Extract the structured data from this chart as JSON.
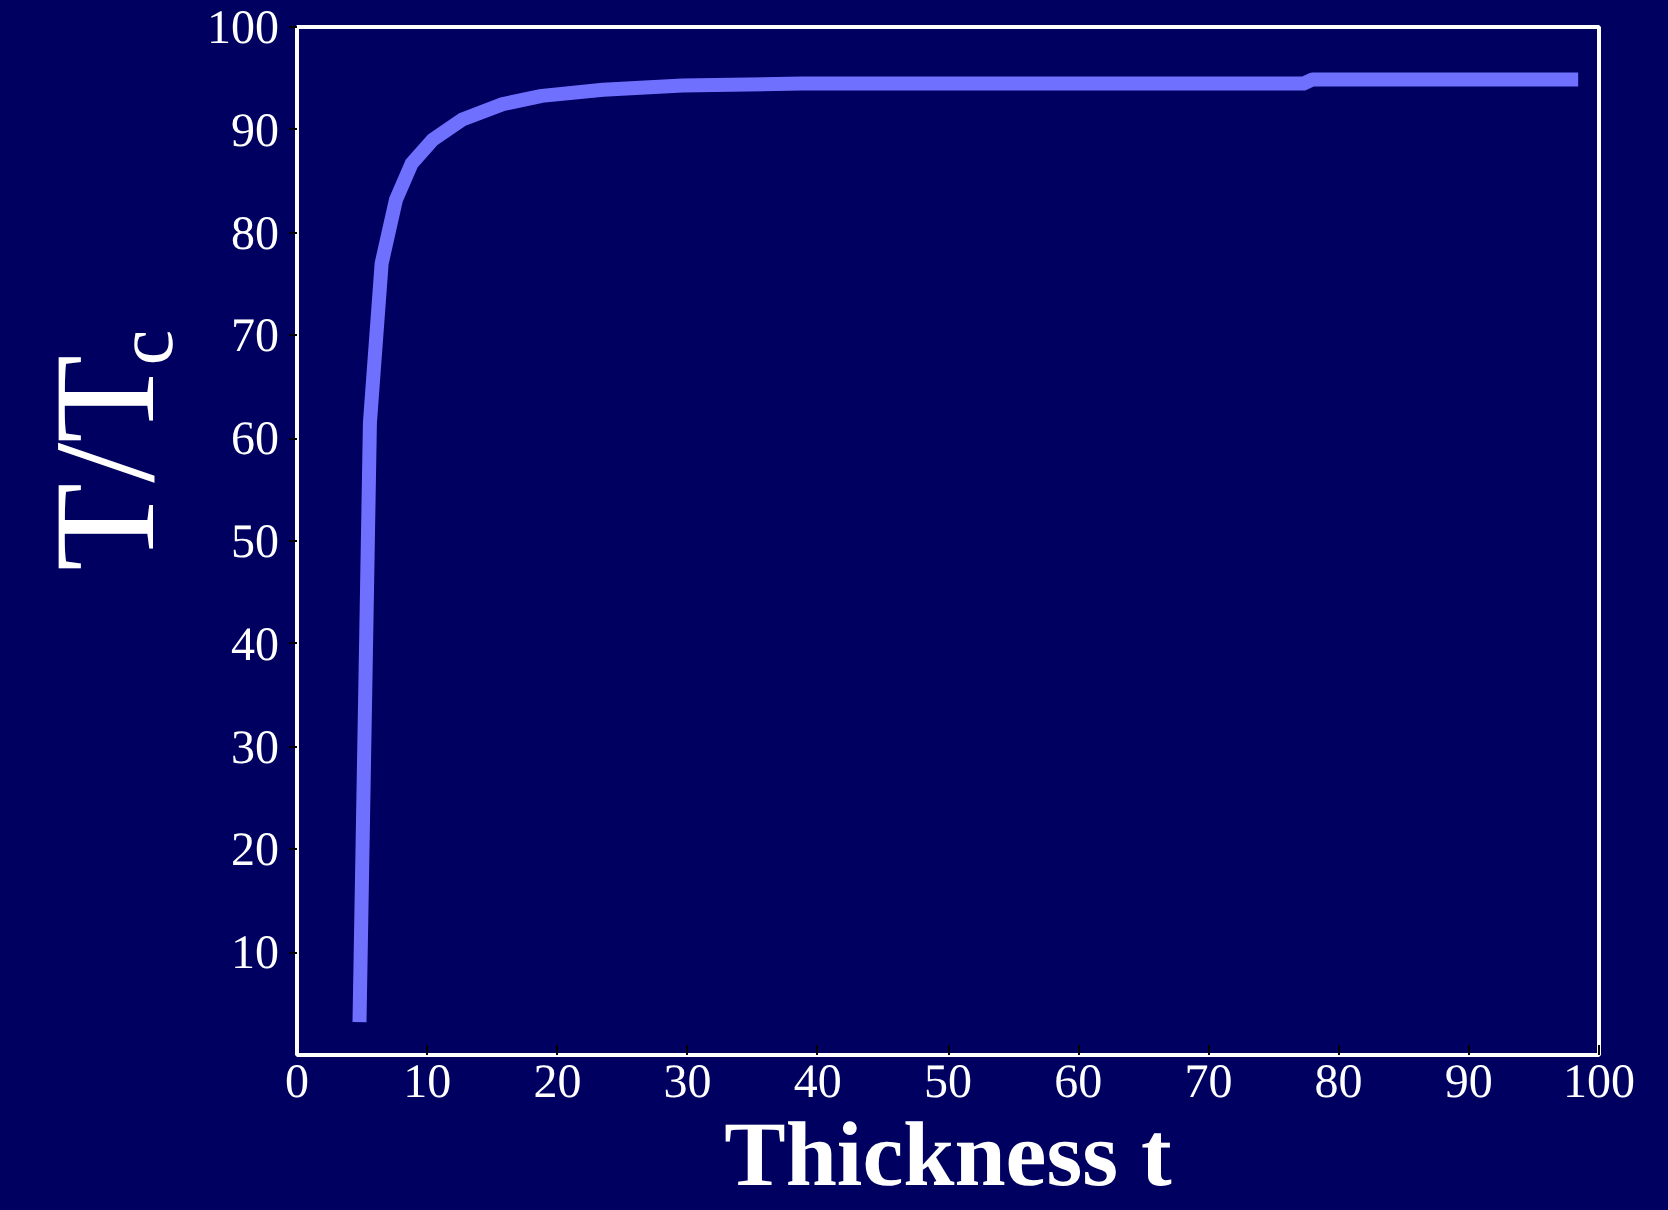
{
  "chart_data": {
    "type": "line",
    "xlabel": "Thickness t",
    "ylabel": "T/T$_{c}$",
    "x": [
      4.8,
      5.6,
      6.5,
      7.6,
      8.8,
      10.4,
      12.7,
      15.8,
      18.8,
      23.5,
      29.6,
      38.8,
      77.3,
      78,
      98.4
    ],
    "series": [
      {
        "color": "#7070ff",
        "values": [
          3.2,
          61.5,
          77,
          83.2,
          86.7,
          89,
          91,
          92.5,
          93.3,
          93.9,
          94.3,
          94.5,
          94.5,
          94.9,
          94.9
        ]
      }
    ],
    "xlim": [
      0,
      100
    ],
    "ylim": [
      0,
      100
    ],
    "xticks": [
      0,
      10,
      20,
      30,
      40,
      50,
      60,
      70,
      80,
      90,
      100
    ],
    "yticks": [
      10,
      20,
      30,
      40,
      50,
      60,
      70,
      80,
      90,
      100
    ],
    "grid": false,
    "marker": "none",
    "line_style": "solid"
  }
}
